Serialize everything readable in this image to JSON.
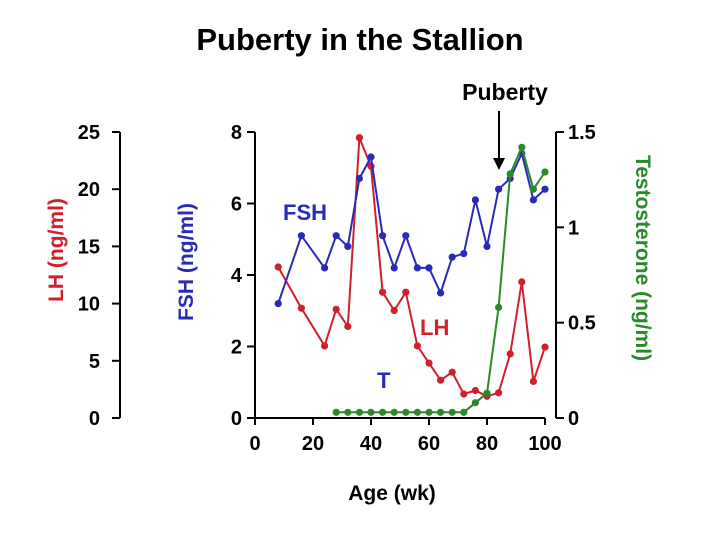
{
  "title": "Puberty in the Stallion",
  "colors": {
    "LH": "#d0202a",
    "FSH": "#2a2ab8",
    "T": "#2a8a2a",
    "axis": "#000000"
  },
  "chart_data": {
    "type": "line",
    "title": "Puberty in the Stallion",
    "xlabel": "Age (wk)",
    "xlim": [
      0,
      100
    ],
    "x_ticks": [
      "0",
      "20",
      "40",
      "60",
      "80",
      "100"
    ],
    "axes": {
      "lh": {
        "label": "LH (ng/ml)",
        "lim": [
          0,
          25
        ],
        "ticks": [
          "0",
          "5",
          "10",
          "15",
          "20",
          "25"
        ]
      },
      "fsh": {
        "label": "FSH (ng/ml)",
        "lim": [
          0,
          8
        ],
        "ticks": [
          "0",
          "2",
          "4",
          "6",
          "8"
        ]
      },
      "t": {
        "label": "Testosterone (ng/ml)",
        "lim": [
          0,
          1.5
        ],
        "ticks": [
          "0",
          "0.5",
          "1",
          "1.5"
        ]
      }
    },
    "series": [
      {
        "name": "LH",
        "axis": "lh",
        "color": "#d0202a",
        "x": [
          8,
          16,
          24,
          28,
          32,
          36,
          40,
          44,
          48,
          52,
          56,
          60,
          64,
          68,
          72,
          76,
          80,
          84,
          88,
          92,
          96,
          100
        ],
        "values": [
          13.2,
          9.6,
          6.3,
          9.5,
          8.0,
          24.5,
          22.0,
          11.0,
          9.4,
          11.0,
          6.3,
          4.8,
          3.3,
          4.0,
          2.1,
          2.4,
          1.9,
          2.2,
          5.6,
          11.9,
          3.2,
          6.2
        ]
      },
      {
        "name": "FSH",
        "axis": "fsh",
        "color": "#2a2ab8",
        "x": [
          8,
          16,
          24,
          28,
          32,
          36,
          40,
          44,
          48,
          52,
          56,
          60,
          64,
          68,
          72,
          76,
          80,
          84,
          88,
          92,
          96,
          100
        ],
        "values": [
          3.2,
          5.1,
          4.2,
          5.1,
          4.8,
          6.7,
          7.3,
          5.1,
          4.2,
          5.1,
          4.2,
          4.2,
          3.5,
          4.5,
          4.6,
          6.1,
          4.8,
          6.4,
          6.7,
          7.4,
          6.1,
          6.4
        ]
      },
      {
        "name": "T",
        "axis": "t",
        "color": "#2a8a2a",
        "x": [
          28,
          32,
          36,
          40,
          44,
          48,
          52,
          56,
          60,
          64,
          68,
          72,
          76,
          80,
          84,
          88,
          92,
          96,
          100
        ],
        "values": [
          0.03,
          0.03,
          0.03,
          0.03,
          0.03,
          0.03,
          0.03,
          0.03,
          0.03,
          0.03,
          0.03,
          0.03,
          0.08,
          0.13,
          0.58,
          1.28,
          1.42,
          1.2,
          1.29
        ]
      }
    ],
    "annotations": {
      "puberty": {
        "text": "Puberty",
        "x": 84
      },
      "series_labels": {
        "FSH": "FSH",
        "LH": "LH",
        "T": "T"
      }
    },
    "grid": false
  }
}
